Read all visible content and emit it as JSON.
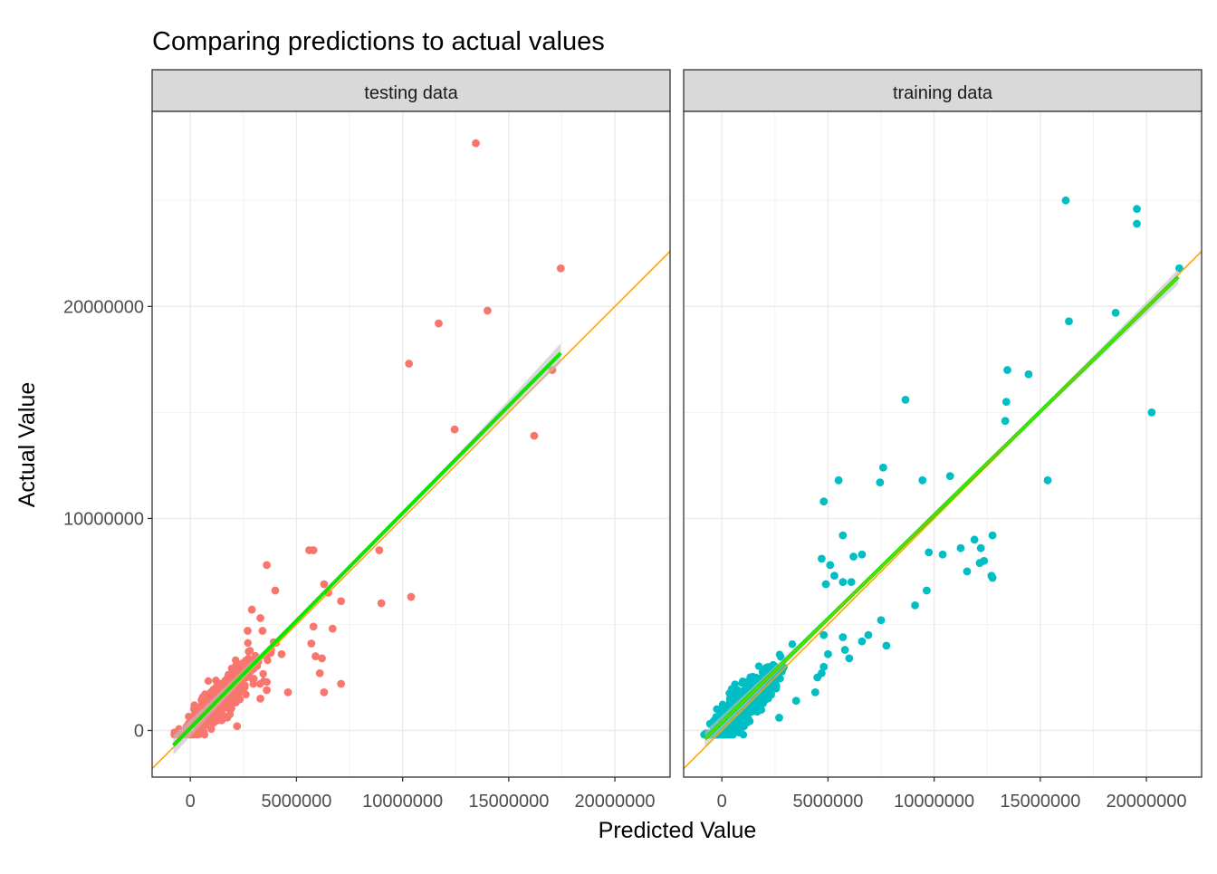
{
  "chart_data": {
    "type": "scatter",
    "title": "Comparing predictions to actual values",
    "xlabel": "Predicted Value",
    "ylabel": "Actual Value",
    "xlim": [
      -1800000,
      22600000
    ],
    "ylim": [
      -2200000,
      29200000
    ],
    "x_ticks": [
      0,
      5000000,
      10000000,
      15000000,
      20000000
    ],
    "x_tick_labels": [
      "0",
      "5000000",
      "10000000",
      "15000000",
      "20000000"
    ],
    "y_ticks": [
      0,
      10000000,
      20000000
    ],
    "y_tick_labels": [
      "0",
      "10000000",
      "20000000"
    ],
    "grid": true,
    "legend": "none",
    "colors": {
      "testing": "#F8766D",
      "training": "#00BFC4",
      "identity_line": "#FFA500",
      "fit_line": "#00E600",
      "fit_band": "#BEBEBE",
      "strip_fill": "#D9D9D9"
    },
    "identity_line": {
      "slope": 1,
      "intercept": 0
    },
    "panels": [
      {
        "label": "testing data",
        "fit_line": {
          "x": [
            -800000,
            17450000
          ],
          "y": [
            -700000,
            17800000
          ]
        },
        "cluster": {
          "center": [
            1300000,
            1100000
          ],
          "x_spread": 1400000,
          "y_spread": 800000,
          "count": 340
        },
        "points": [
          [
            13450000,
            27700000
          ],
          [
            17450000,
            21800000
          ],
          [
            14000000,
            19800000
          ],
          [
            11700000,
            19200000
          ],
          [
            10300000,
            17300000
          ],
          [
            17050000,
            17000000
          ],
          [
            16200000,
            13900000
          ],
          [
            12450000,
            14200000
          ],
          [
            5600000,
            8500000
          ],
          [
            5800000,
            8500000
          ],
          [
            8900000,
            8500000
          ],
          [
            3600000,
            7800000
          ],
          [
            10400000,
            6300000
          ],
          [
            9000000,
            6000000
          ],
          [
            7100000,
            6100000
          ],
          [
            6300000,
            6900000
          ],
          [
            6500000,
            6500000
          ],
          [
            2900000,
            5700000
          ],
          [
            4000000,
            6600000
          ],
          [
            3300000,
            5300000
          ],
          [
            6700000,
            4800000
          ],
          [
            5800000,
            4900000
          ],
          [
            5700000,
            4100000
          ],
          [
            3400000,
            4700000
          ],
          [
            2700000,
            4700000
          ],
          [
            4300000,
            3600000
          ],
          [
            3800000,
            3800000
          ],
          [
            6200000,
            3400000
          ],
          [
            5900000,
            3500000
          ],
          [
            6100000,
            2700000
          ],
          [
            7100000,
            2200000
          ],
          [
            6300000,
            1800000
          ],
          [
            4600000,
            1800000
          ],
          [
            3600000,
            1900000
          ],
          [
            3300000,
            1500000
          ],
          [
            2200000,
            200000
          ]
        ]
      },
      {
        "label": "training data",
        "fit_line": {
          "x": [
            -800000,
            21500000
          ],
          "y": [
            -400000,
            21400000
          ]
        },
        "cluster": {
          "center": [
            900000,
            800000
          ],
          "x_spread": 1100000,
          "y_spread": 700000,
          "count": 900
        },
        "points": [
          [
            16200000,
            25000000
          ],
          [
            19550000,
            24600000
          ],
          [
            19550000,
            23900000
          ],
          [
            21550000,
            21800000
          ],
          [
            18550000,
            19700000
          ],
          [
            16350000,
            19300000
          ],
          [
            8650000,
            15600000
          ],
          [
            13450000,
            17000000
          ],
          [
            14450000,
            16800000
          ],
          [
            13400000,
            15500000
          ],
          [
            20250000,
            15000000
          ],
          [
            13350000,
            14600000
          ],
          [
            5500000,
            11800000
          ],
          [
            7600000,
            12400000
          ],
          [
            7450000,
            11700000
          ],
          [
            9450000,
            11800000
          ],
          [
            10750000,
            12000000
          ],
          [
            15350000,
            11800000
          ],
          [
            4800000,
            10800000
          ],
          [
            11900000,
            9000000
          ],
          [
            12200000,
            8600000
          ],
          [
            11250000,
            8600000
          ],
          [
            12750000,
            9200000
          ],
          [
            12350000,
            8000000
          ],
          [
            12150000,
            7900000
          ],
          [
            11550000,
            7500000
          ],
          [
            12750000,
            7200000
          ],
          [
            12700000,
            7300000
          ],
          [
            10400000,
            8300000
          ],
          [
            9750000,
            8400000
          ],
          [
            4700000,
            8100000
          ],
          [
            5100000,
            7800000
          ],
          [
            6600000,
            8300000
          ],
          [
            5700000,
            9200000
          ],
          [
            6200000,
            8200000
          ],
          [
            5300000,
            7300000
          ],
          [
            5700000,
            7000000
          ],
          [
            6100000,
            7000000
          ],
          [
            4900000,
            6900000
          ],
          [
            9650000,
            6600000
          ],
          [
            9100000,
            5900000
          ],
          [
            7500000,
            5200000
          ],
          [
            7750000,
            4000000
          ],
          [
            6600000,
            4200000
          ],
          [
            6900000,
            4500000
          ],
          [
            5700000,
            4400000
          ],
          [
            5800000,
            3800000
          ],
          [
            6000000,
            3400000
          ],
          [
            4800000,
            4500000
          ],
          [
            5000000,
            3600000
          ],
          [
            4800000,
            3000000
          ],
          [
            4500000,
            2500000
          ],
          [
            4700000,
            2700000
          ],
          [
            4400000,
            1800000
          ],
          [
            3500000,
            1400000
          ],
          [
            2700000,
            600000
          ]
        ]
      }
    ]
  }
}
